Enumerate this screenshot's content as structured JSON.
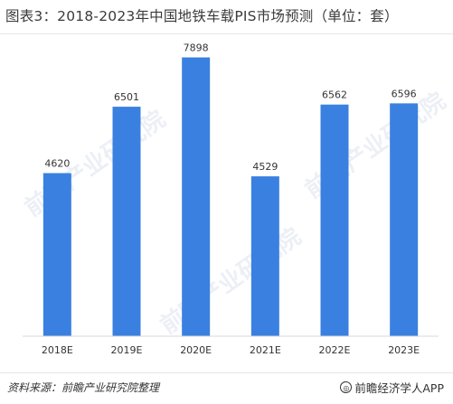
{
  "title": "图表3：2018-2023年中国地铁车载PIS市场预测（单位：套）",
  "footer": {
    "source": "资料来源：前瞻产业研究院整理",
    "brand": "前瞻经济学人APP",
    "brand_icon": "copyright-icon"
  },
  "watermark": {
    "text": "前瞻产业研究院"
  },
  "colors": {
    "bar": "#3a80e0",
    "axis": "#d9d9d9",
    "text": "#333333"
  },
  "chart_data": {
    "type": "bar",
    "title": "图表3：2018-2023年中国地铁车载PIS市场预测（单位：套）",
    "categories": [
      "2018E",
      "2019E",
      "2020E",
      "2021E",
      "2022E",
      "2023E"
    ],
    "values": [
      4620,
      6501,
      7898,
      4529,
      6562,
      6596
    ],
    "data_labels": [
      "4620",
      "6501",
      "7898",
      "4529",
      "6562",
      "6596"
    ],
    "ylim": [
      0,
      8500
    ],
    "grid": false,
    "legend": "none",
    "xlabel": "",
    "ylabel": ""
  }
}
